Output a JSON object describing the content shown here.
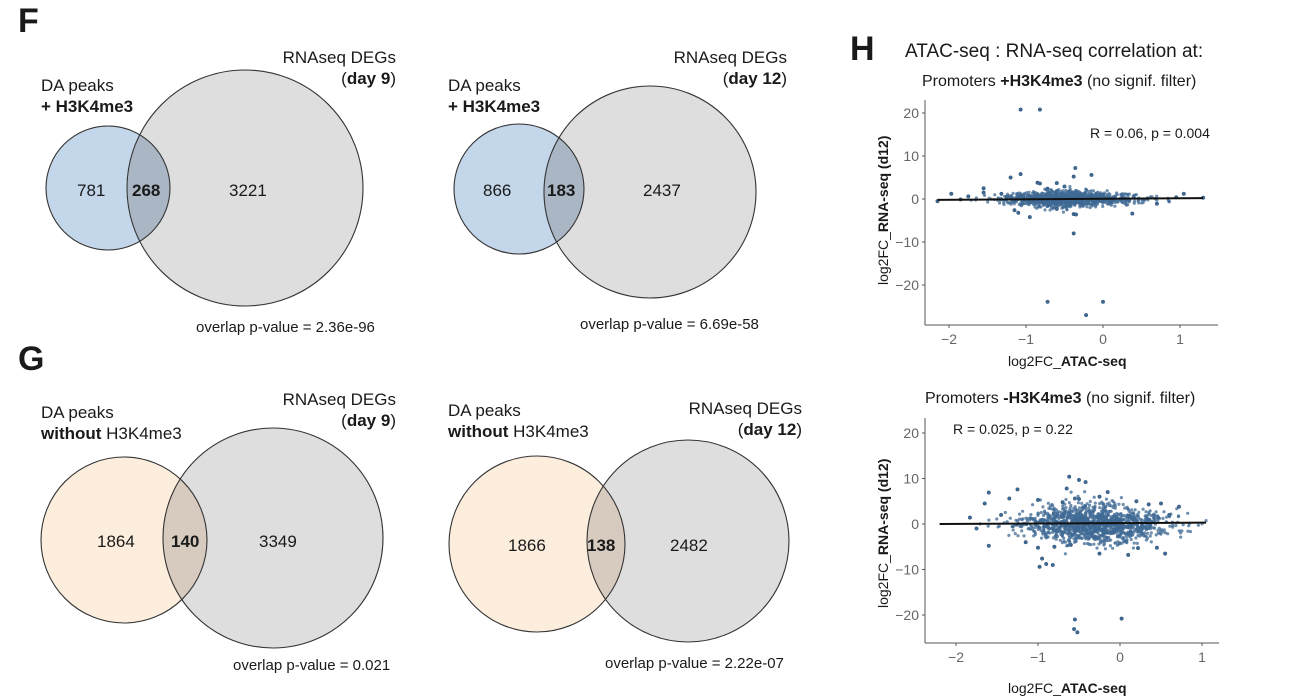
{
  "panels": {
    "F": {
      "letter": "F"
    },
    "G": {
      "letter": "G"
    },
    "H": {
      "letter": "H",
      "title": "ATAC-seq : RNA-seq correlation at:"
    }
  },
  "colors": {
    "blue_fill": "#c3d6ea",
    "blue_overlap": "#aab6c3",
    "orange_fill": "#fdeddd",
    "orange_overlap": "#d7cbbf",
    "gray_fill": "#dedede",
    "outline": "#333333",
    "point": "#3f6a94",
    "point_edge": "#2b4c6e",
    "regression": "#111111",
    "axis": "#555555",
    "tick_text": "#666666"
  },
  "venns": [
    {
      "id": "F-day9",
      "left_label_line1": "DA peaks",
      "left_label_line2_bold": "+ H3K4me3",
      "left_label_line2_rest": "",
      "right_label_line1": "RNAseq DEGs",
      "right_label_open": "(",
      "right_label_bold": "day 9",
      "right_label_close": ")",
      "left_only": "781",
      "overlap": "268",
      "right_only": "3221",
      "pvalue_text": "overlap p-value = 2.36e-96",
      "left_color": "blue"
    },
    {
      "id": "F-day12",
      "left_label_line1": "DA peaks",
      "left_label_line2_bold": "+ H3K4me3",
      "left_label_line2_rest": "",
      "right_label_line1": "RNAseq DEGs",
      "right_label_open": "(",
      "right_label_bold": "day 12",
      "right_label_close": ")",
      "left_only": "866",
      "overlap": "183",
      "right_only": "2437",
      "pvalue_text": "overlap p-value = 6.69e-58",
      "left_color": "blue"
    },
    {
      "id": "G-day9",
      "left_label_line1": "DA peaks",
      "left_label_line2_bold": "without",
      "left_label_line2_rest": " H3K4me3",
      "right_label_line1": "RNAseq DEGs",
      "right_label_open": "(",
      "right_label_bold": "day 9",
      "right_label_close": ")",
      "left_only": "1864",
      "overlap": "140",
      "right_only": "3349",
      "pvalue_text": "overlap p-value = 0.021",
      "left_color": "orange"
    },
    {
      "id": "G-day12",
      "left_label_line1": "DA peaks",
      "left_label_line2_bold": "without",
      "left_label_line2_rest": " H3K4me3",
      "right_label_line1": "RNAseq DEGs",
      "right_label_open": "(",
      "right_label_bold": "day 12",
      "right_label_close": ")",
      "left_only": "1866",
      "overlap": "138",
      "right_only": "2482",
      "pvalue_text": "overlap p-value = 2.22e-07",
      "left_color": "orange"
    }
  ],
  "chart_data": [
    {
      "type": "scatter",
      "id": "H-top",
      "title_prefix": "Promoters ",
      "title_bold": "+H3K4me3",
      "title_suffix": " (no signif. filter)",
      "xlabel_prefix": "log2FC_",
      "xlabel_bold": "ATAC-seq",
      "ylabel_prefix": "log2FC_",
      "ylabel_bold": "RNA-seq (d12)",
      "annotation": "R = 0.06, p = 0.004",
      "xlim": [
        -2.2,
        1.35
      ],
      "ylim": [
        -28,
        23
      ],
      "xticks": [
        -2,
        -1,
        0,
        1
      ],
      "xtick_labels": [
        "−2",
        "−1",
        "0",
        "1"
      ],
      "yticks": [
        20,
        10,
        0,
        -10,
        -20
      ],
      "ytick_labels": [
        "20",
        "10",
        "0",
        "−10",
        "−20"
      ],
      "grid": false,
      "regression": {
        "x": [
          -2.15,
          1.3
        ],
        "y": [
          -0.2,
          0.2
        ]
      },
      "cloud": {
        "x_center": -0.45,
        "x_spread": 0.42,
        "y_spread": 0.7,
        "n": 1100,
        "seed": 7
      },
      "points": [
        [
          -1.07,
          20.8
        ],
        [
          -0.82,
          20.8
        ],
        [
          -1.2,
          5.0
        ],
        [
          -1.07,
          5.8
        ],
        [
          -0.36,
          7.2
        ],
        [
          -0.15,
          5.6
        ],
        [
          -0.38,
          5.2
        ],
        [
          -0.85,
          3.8
        ],
        [
          -0.82,
          3.6
        ],
        [
          -0.6,
          3.7
        ],
        [
          -0.5,
          2.9
        ],
        [
          -0.72,
          2.4
        ],
        [
          -1.97,
          1.2
        ],
        [
          -1.55,
          2.5
        ],
        [
          -1.55,
          1.5
        ],
        [
          -1.32,
          1.2
        ],
        [
          -1.25,
          0.5
        ],
        [
          -1.85,
          -0.1
        ],
        [
          -2.15,
          -0.5
        ],
        [
          -1.75,
          0.6
        ],
        [
          0.95,
          0.4
        ],
        [
          1.05,
          1.2
        ],
        [
          1.3,
          0.3
        ],
        [
          0.7,
          -1.1
        ],
        [
          0.38,
          -3.4
        ],
        [
          -0.95,
          -4.2
        ],
        [
          -0.38,
          -3.5
        ],
        [
          -0.35,
          -3.6
        ],
        [
          -1.15,
          -2.6
        ],
        [
          -1.1,
          -3.2
        ],
        [
          -0.6,
          -2.3
        ],
        [
          -0.38,
          -8.0
        ],
        [
          -0.72,
          -23.9
        ],
        [
          0.0,
          -23.9
        ],
        [
          -0.22,
          -27.0
        ]
      ]
    },
    {
      "type": "scatter",
      "id": "H-bottom",
      "title_prefix": "Promoters ",
      "title_bold": "-H3K4me3",
      "title_suffix": " (no signif. filter)",
      "xlabel_prefix": "log2FC_",
      "xlabel_bold": "ATAC-seq",
      "ylabel_prefix": "log2FC_",
      "ylabel_bold": "RNA-seq (d12)",
      "annotation": "R = 0.025, p = 0.22",
      "xlim": [
        -2.25,
        1.15
      ],
      "ylim": [
        -26,
        23
      ],
      "xticks": [
        -2,
        -1,
        0,
        1
      ],
      "xtick_labels": [
        "−2",
        "−1",
        "0",
        "1"
      ],
      "yticks": [
        20,
        10,
        0,
        -10,
        -20
      ],
      "ytick_labels": [
        "20",
        "10",
        "0",
        "−10",
        "−20"
      ],
      "grid": false,
      "regression": {
        "x": [
          -2.2,
          1.05
        ],
        "y": [
          0.0,
          0.3
        ]
      },
      "cloud": {
        "x_center": -0.3,
        "x_spread": 0.45,
        "y_spread": 1.6,
        "n": 1300,
        "seed": 13
      },
      "points": [
        [
          -0.62,
          10.4
        ],
        [
          -0.5,
          9.7
        ],
        [
          -0.42,
          9.2
        ],
        [
          -0.65,
          7.8
        ],
        [
          -1.25,
          7.6
        ],
        [
          -1.6,
          6.9
        ],
        [
          -0.15,
          7.0
        ],
        [
          -0.55,
          5.6
        ],
        [
          -0.5,
          5.5
        ],
        [
          -1.0,
          5.3
        ],
        [
          -1.65,
          4.5
        ],
        [
          -1.35,
          5.6
        ],
        [
          -0.7,
          4.8
        ],
        [
          -0.25,
          6.0
        ],
        [
          0.2,
          5.0
        ],
        [
          0.35,
          4.3
        ],
        [
          0.5,
          4.5
        ],
        [
          0.72,
          3.8
        ],
        [
          0.6,
          2.0
        ],
        [
          -1.83,
          1.4
        ],
        [
          -1.45,
          2.0
        ],
        [
          -1.75,
          -1.0
        ],
        [
          -1.6,
          -4.8
        ],
        [
          -1.15,
          -4.0
        ],
        [
          -1.0,
          -5.2
        ],
        [
          -0.95,
          -7.6
        ],
        [
          -0.98,
          -9.4
        ],
        [
          -0.9,
          -8.8
        ],
        [
          -0.82,
          -9.0
        ],
        [
          -0.8,
          -5.0
        ],
        [
          -0.6,
          -4.6
        ],
        [
          -0.25,
          -6.5
        ],
        [
          0.1,
          -6.8
        ],
        [
          0.22,
          -5.3
        ],
        [
          0.45,
          -5.2
        ],
        [
          0.55,
          -6.5
        ],
        [
          -0.55,
          -21.0
        ],
        [
          -0.56,
          -23.1
        ],
        [
          -0.52,
          -23.8
        ],
        [
          0.02,
          -20.8
        ]
      ]
    }
  ]
}
